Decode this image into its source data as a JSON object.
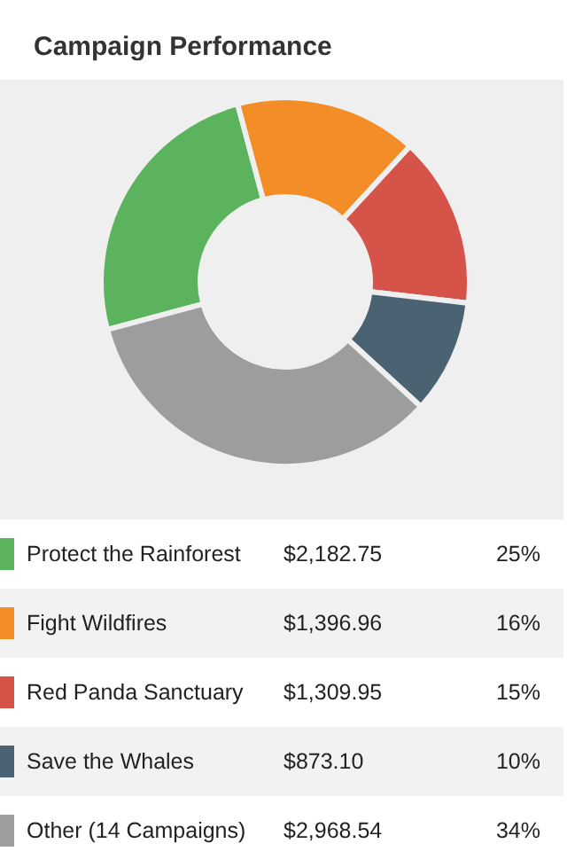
{
  "chart_data": {
    "type": "donut",
    "title": "Campaign Performance",
    "categories": [
      "Protect the Rainforest",
      "Fight Wildfires",
      "Red Panda Sanctuary",
      "Save the Whales",
      "Other (14 Campaigns)"
    ],
    "values": [
      2182.75,
      1396.96,
      1309.95,
      873.1,
      2968.54
    ],
    "colors": [
      "#5cb35d",
      "#f28d27",
      "#d6534a",
      "#4b6272",
      "#9d9d9d"
    ],
    "value_labels": [
      "$2,182.75",
      "$1,396.96",
      "$1,309.95",
      "$873.10",
      "$2,968.54"
    ],
    "annotations": [
      "25%",
      "16%",
      "15%",
      "10%",
      "34%"
    ],
    "legend": "bottom"
  }
}
